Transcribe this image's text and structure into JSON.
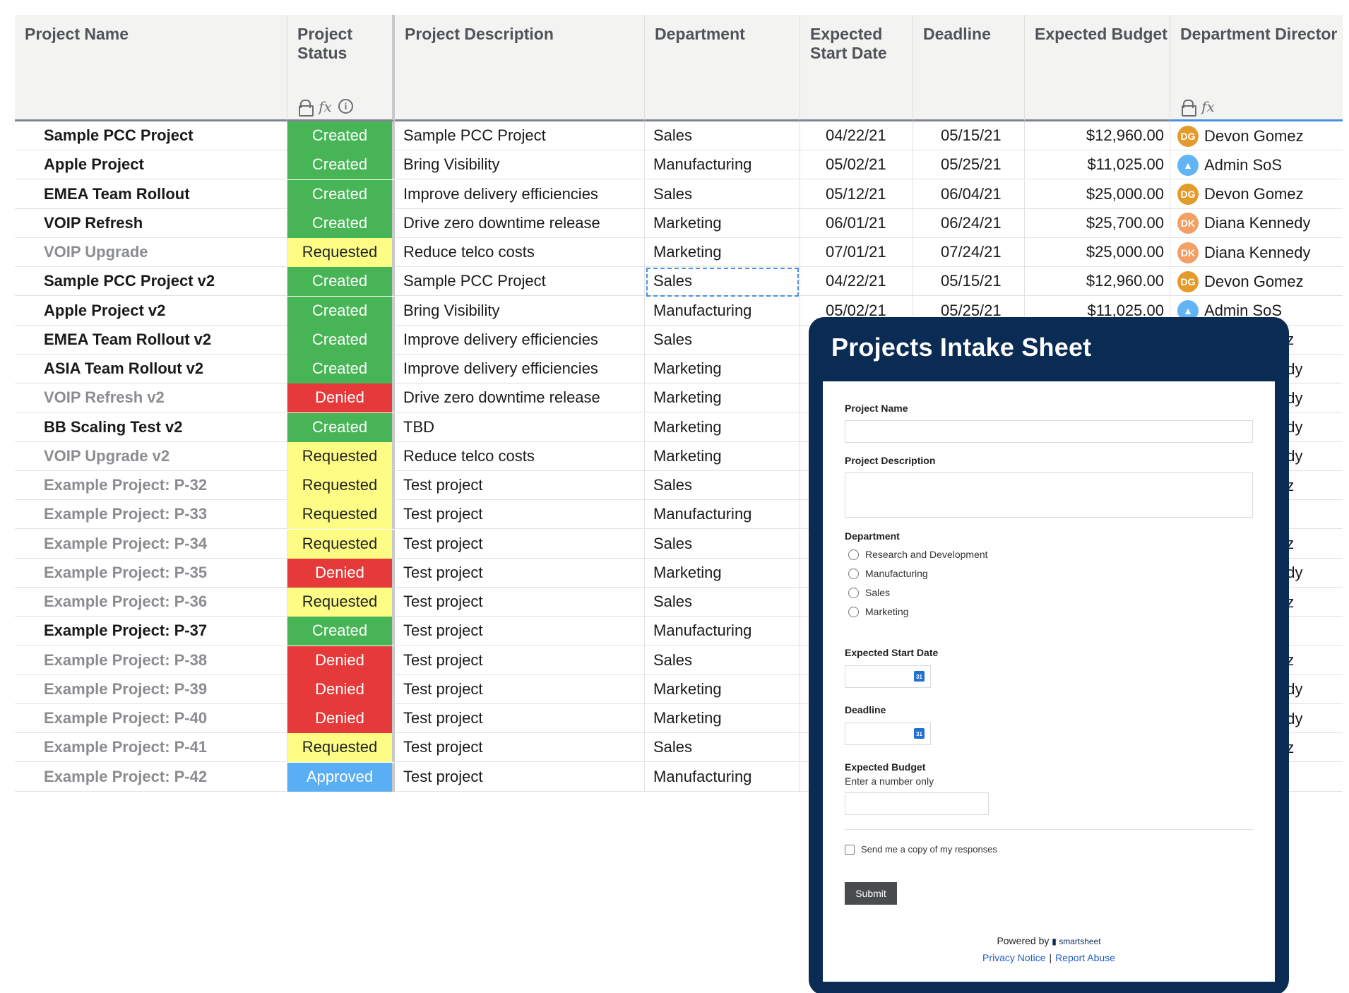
{
  "grid": {
    "headers": {
      "name": "Project Name",
      "status": "Project\nStatus",
      "desc": "Project Description",
      "dept": "Department",
      "start": "Expected\nStart Date",
      "deadline": "Deadline",
      "budget": "Expected Budget",
      "director": "Department Director"
    },
    "rows": [
      {
        "name": "Sample PCC Project",
        "status": "Created",
        "desc": "Sample PCC Project",
        "dept": "Sales",
        "start": "04/22/21",
        "deadline": "05/15/21",
        "budget": "$12,960.00",
        "director": "Devon Gomez",
        "initials": "DG"
      },
      {
        "name": "Apple Project",
        "status": "Created",
        "desc": "Bring Visibility",
        "dept": "Manufacturing",
        "start": "05/02/21",
        "deadline": "05/25/21",
        "budget": "$11,025.00",
        "director": "Admin SoS",
        "initials": ""
      },
      {
        "name": "EMEA Team Rollout",
        "status": "Created",
        "desc": "Improve delivery efficiencies",
        "dept": "Sales",
        "start": "05/12/21",
        "deadline": "06/04/21",
        "budget": "$25,000.00",
        "director": "Devon Gomez",
        "initials": "DG"
      },
      {
        "name": "VOIP Refresh",
        "status": "Created",
        "desc": "Drive zero downtime release",
        "dept": "Marketing",
        "start": "06/01/21",
        "deadline": "06/24/21",
        "budget": "$25,700.00",
        "director": "Diana Kennedy",
        "initials": "DK"
      },
      {
        "name": "VOIP Upgrade",
        "status": "Requested",
        "desc": "Reduce telco costs",
        "dept": "Marketing",
        "start": "07/01/21",
        "deadline": "07/24/21",
        "budget": "$25,000.00",
        "director": "Diana Kennedy",
        "initials": "DK"
      },
      {
        "name": "Sample PCC Project v2",
        "status": "Created",
        "desc": "Sample PCC Project",
        "dept": "Sales",
        "start": "04/22/21",
        "deadline": "05/15/21",
        "budget": "$12,960.00",
        "director": "Devon Gomez",
        "initials": "DG"
      },
      {
        "name": "Apple Project v2",
        "status": "Created",
        "desc": "Bring Visibility",
        "dept": "Manufacturing",
        "start": "05/02/21",
        "deadline": "05/25/21",
        "budget": "$11,025.00",
        "director": "Admin SoS",
        "initials": ""
      },
      {
        "name": "EMEA Team Rollout v2",
        "status": "Created",
        "desc": "Improve delivery efficiencies",
        "dept": "Sales",
        "director": "ez"
      },
      {
        "name": "ASIA Team Rollout v2",
        "status": "Created",
        "desc": "Improve delivery efficiencies",
        "dept": "Marketing",
        "director": "edy"
      },
      {
        "name": "VOIP Refresh v2",
        "status": "Denied",
        "desc": "Drive zero downtime release",
        "dept": "Marketing",
        "director": "edy"
      },
      {
        "name": "BB Scaling Test v2",
        "status": "Created",
        "desc": "TBD",
        "dept": "Marketing",
        "director": "edy"
      },
      {
        "name": "VOIP Upgrade v2",
        "status": "Requested",
        "desc": "Reduce telco costs",
        "dept": "Marketing",
        "director": "edy"
      },
      {
        "name": "Example Project: P-32",
        "status": "Requested",
        "desc": "Test project",
        "dept": "Sales",
        "director": "ez"
      },
      {
        "name": "Example Project: P-33",
        "status": "Requested",
        "desc": "Test project",
        "dept": "Manufacturing",
        "director": ""
      },
      {
        "name": "Example Project: P-34",
        "status": "Requested",
        "desc": "Test project",
        "dept": "Sales",
        "director": "ez"
      },
      {
        "name": "Example Project: P-35",
        "status": "Denied",
        "desc": "Test project",
        "dept": "Marketing",
        "director": "edy"
      },
      {
        "name": "Example Project: P-36",
        "status": "Requested",
        "desc": "Test project",
        "dept": "Sales",
        "director": "ez"
      },
      {
        "name": "Example Project: P-37",
        "status": "Created",
        "desc": "Test project",
        "dept": "Manufacturing",
        "director": ""
      },
      {
        "name": "Example Project: P-38",
        "status": "Denied",
        "desc": "Test project",
        "dept": "Sales",
        "director": "ez"
      },
      {
        "name": "Example Project: P-39",
        "status": "Denied",
        "desc": "Test project",
        "dept": "Marketing",
        "director": "edy"
      },
      {
        "name": "Example Project: P-40",
        "status": "Denied",
        "desc": "Test project",
        "dept": "Marketing",
        "director": "edy"
      },
      {
        "name": "Example Project: P-41",
        "status": "Requested",
        "desc": "Test project",
        "dept": "Sales",
        "director": "ez"
      },
      {
        "name": "Example Project: P-42",
        "status": "Approved",
        "desc": "Test project",
        "dept": "Manufacturing",
        "director": ""
      }
    ]
  },
  "colors": {
    "Created": "#47b556",
    "Requested": "#fdfd86",
    "Denied": "#e53a39",
    "Approved": "#5aaef3",
    "DG": "#e39c2b",
    "DK": "#f2a064"
  },
  "form": {
    "title": "Projects Intake Sheet",
    "project_name_label": "Project Name",
    "project_desc_label": "Project Description",
    "department_label": "Department",
    "department_options": [
      "Research and Development",
      "Manufacturing",
      "Sales",
      "Marketing"
    ],
    "start_date_label": "Expected Start Date",
    "deadline_label": "Deadline",
    "budget_label": "Expected Budget",
    "budget_hint": "Enter a number only",
    "copy_label": "Send me a copy of my responses",
    "submit_label": "Submit",
    "powered_by": "Powered by",
    "brand": "smartsheet",
    "privacy": "Privacy Notice",
    "report": "Report Abuse"
  }
}
